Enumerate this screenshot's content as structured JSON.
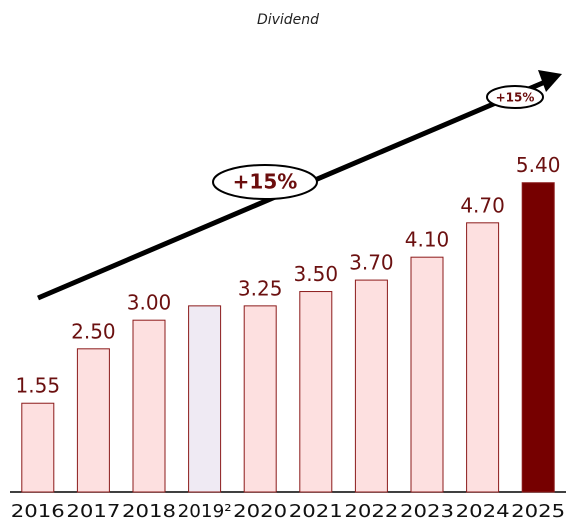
{
  "chart_data": {
    "type": "bar",
    "title": "Dividend",
    "categories": [
      "2016",
      "2017",
      "2018",
      "2019²",
      "2020",
      "2021",
      "2022",
      "2023",
      "2024",
      "2025"
    ],
    "values": [
      1.55,
      2.5,
      3.0,
      3.25,
      3.25,
      3.5,
      3.7,
      4.1,
      4.7,
      5.4
    ],
    "value_labels": [
      "1.55",
      "2.50",
      "3.00",
      null,
      "3.25",
      "3.50",
      "3.70",
      "4.10",
      "4.70",
      "5.40"
    ],
    "colors": [
      "#fde0e0",
      "#fde0e0",
      "#fde0e0",
      "#efeaf3",
      "#fde0e0",
      "#fde0e0",
      "#fde0e0",
      "#fde0e0",
      "#fde0e0",
      "#760000"
    ],
    "ylim": [
      0,
      5.5
    ],
    "annotations": [
      "+15%",
      "+15%"
    ]
  }
}
